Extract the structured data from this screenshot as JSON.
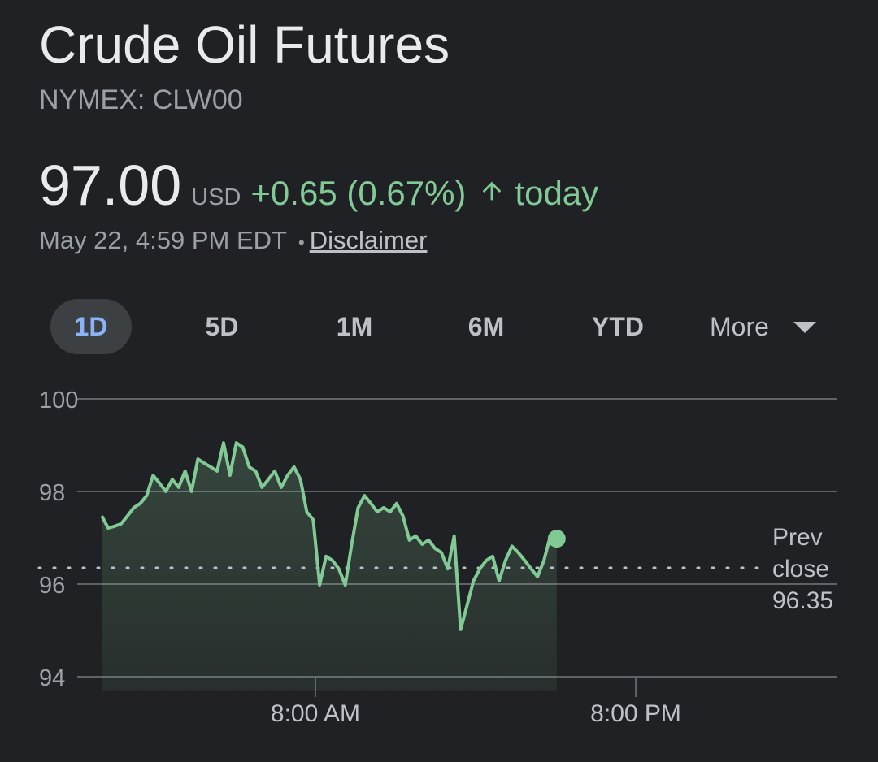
{
  "title": "Crude Oil Futures",
  "ticker": "NYMEX: CLW00",
  "price": "97.00",
  "currency": "USD",
  "change": "+0.65 (0.67%)",
  "period": "today",
  "timestamp": "May 22, 4:59 PM EDT",
  "separator": "•",
  "disclaimer": "Disclaimer",
  "tabs": [
    "1D",
    "5D",
    "1M",
    "6M",
    "YTD",
    "More"
  ],
  "active_tab": "1D",
  "chart_data": {
    "type": "line",
    "color": "#81c995",
    "x": [
      0,
      0.24,
      0.48,
      0.72,
      0.96,
      1.2,
      1.44,
      1.68,
      1.92,
      2.16,
      2.4,
      2.64,
      2.88,
      3.12,
      3.36,
      3.6,
      3.84,
      4.08,
      4.32,
      4.56,
      4.8,
      5.04,
      5.28,
      5.52,
      5.76,
      6,
      6.24,
      6.48,
      6.72,
      6.96,
      7.2,
      7.44,
      7.68,
      7.92,
      8.16,
      8.4,
      8.64,
      8.88,
      9.12,
      9.36,
      9.6,
      9.84,
      10.08,
      10.32,
      10.56,
      10.8,
      11.04,
      11.28,
      11.52,
      11.76,
      12,
      12.24,
      12.48,
      12.72,
      12.96,
      13.2,
      13.44,
      13.68,
      13.92,
      14.16,
      14.4,
      14.64,
      14.88,
      15.12,
      15.36,
      15.6,
      15.84,
      16.08,
      16.32,
      16.56,
      16.8,
      17.04
    ],
    "values": [
      97.47,
      97.21,
      97.25,
      97.3,
      97.47,
      97.65,
      97.74,
      97.91,
      98.35,
      98.18,
      98,
      98.26,
      98.09,
      98.44,
      98,
      98.7,
      98.61,
      98.53,
      98.44,
      99.05,
      98.35,
      99.05,
      98.96,
      98.53,
      98.44,
      98.09,
      98.26,
      98.44,
      98.09,
      98.35,
      98.53,
      98.26,
      97.56,
      97.39,
      95.98,
      96.6,
      96.51,
      96.33,
      95.98,
      96.86,
      97.65,
      97.91,
      97.74,
      97.56,
      97.65,
      97.56,
      97.74,
      97.47,
      96.95,
      97.04,
      96.86,
      96.95,
      96.77,
      96.68,
      96.33,
      97.04,
      95.02,
      95.54,
      96.07,
      96.33,
      96.51,
      96.6,
      96.07,
      96.51,
      96.82,
      96.68,
      96.51,
      96.33,
      96.16,
      96.51,
      97.04,
      96.98
    ],
    "xlim": [
      -0.92,
      27.55
    ],
    "ylim": [
      94,
      100
    ],
    "yticks": [
      100,
      98,
      96,
      94
    ],
    "xticks": [
      {
        "value": 8,
        "label": "8:00 AM"
      },
      {
        "value": 20,
        "label": "8:00 PM"
      }
    ],
    "grid": true,
    "prev_close": {
      "label": "Prev close",
      "value": 96.35
    }
  }
}
